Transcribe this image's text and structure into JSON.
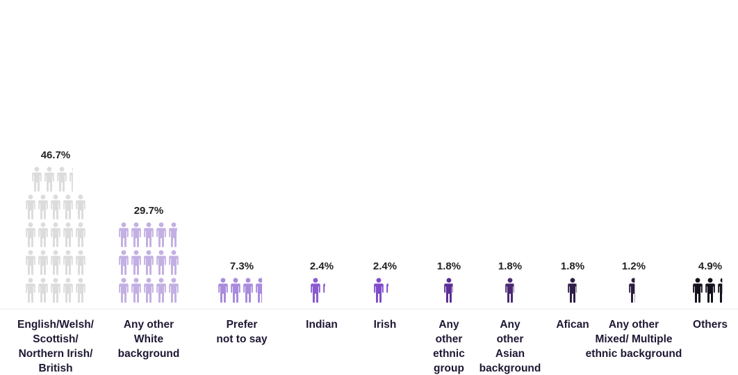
{
  "chart_data": {
    "type": "bar",
    "title": "",
    "xlabel": "",
    "ylabel": "",
    "grid": false,
    "categories": [
      "English/Welsh/ Scottish/ Northern Irish/ British",
      "Any other White background",
      "Prefer not to say",
      "Indian",
      "Irish",
      "Any other ethnic group",
      "Any other Asian background",
      "Afican",
      "Any other Mixed/ Multiple ethnic background",
      "Others"
    ],
    "category_lines": [
      [
        "English/Welsh/",
        "Scottish/",
        "Northern Irish/",
        "British"
      ],
      [
        "Any other",
        "White",
        "background"
      ],
      [
        "Prefer",
        "not to say"
      ],
      [
        "Indian"
      ],
      [
        "Irish"
      ],
      [
        "Any",
        "other",
        "ethnic",
        "group"
      ],
      [
        "Any",
        "other",
        "Asian",
        "background"
      ],
      [
        "Afican"
      ],
      [
        "Any other",
        "Mixed/ Multiple",
        "ethnic background"
      ],
      [
        "Others"
      ]
    ],
    "value_labels": [
      "46.7%",
      "29.7%",
      "7.3%",
      "2.4%",
      "2.4%",
      "1.8%",
      "1.8%",
      "1.8%",
      "1.2%",
      "4.9%"
    ],
    "values": [
      46.7,
      29.7,
      7.3,
      2.4,
      2.4,
      1.8,
      1.8,
      1.8,
      1.2,
      4.9
    ],
    "icon": "person-icon",
    "colors": [
      "#dcdcdc",
      "#c3b0e3",
      "#a98bdc",
      "#8a5ad0",
      "#7e4bcc",
      "#5b2e96",
      "#4a2a72",
      "#2f1f48",
      "#2a1e3c",
      "#15101c"
    ]
  }
}
